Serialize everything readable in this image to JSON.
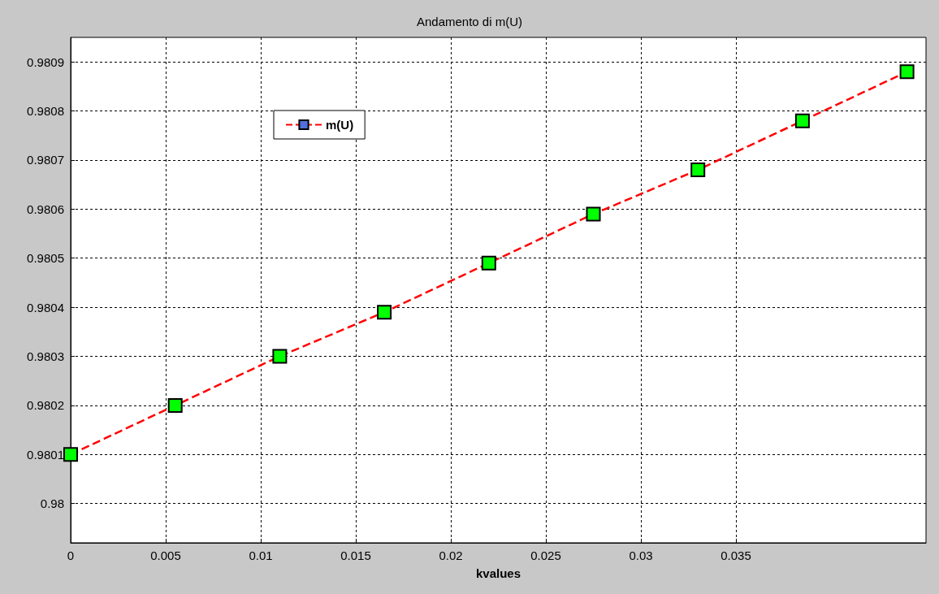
{
  "chart_data": {
    "type": "line",
    "title": "Andamento di m(U)",
    "xlabel": "kvalues",
    "x": [
      0,
      0.0055,
      0.011,
      0.0165,
      0.022,
      0.0275,
      0.033,
      0.0385,
      0.044
    ],
    "series": [
      {
        "name": "m(U)",
        "color": "#ff0000",
        "colors": [
          "#00ff00",
          "#00ff00",
          "#00ff00",
          "#00ff00",
          "#00ff00",
          "#00ff00",
          "#00ff00",
          "#00ff00",
          "#00ff00"
        ],
        "values": [
          0.9801,
          0.9802,
          0.9803,
          0.98039,
          0.98049,
          0.98059,
          0.98068,
          0.98078,
          0.98088
        ]
      }
    ],
    "xlim": [
      0,
      0.045
    ],
    "xticks": [
      0,
      0.005,
      0.01,
      0.015,
      0.02,
      0.025,
      0.03,
      0.035
    ],
    "ylim": [
      0.97992,
      0.98095
    ],
    "yticks": [
      0.98,
      0.9801,
      0.9802,
      0.9803,
      0.9804,
      0.9805,
      0.9806,
      0.9807,
      0.9808,
      0.9809
    ],
    "grid": true,
    "legend": "top left",
    "marker": "square",
    "line_style": "dashed"
  }
}
